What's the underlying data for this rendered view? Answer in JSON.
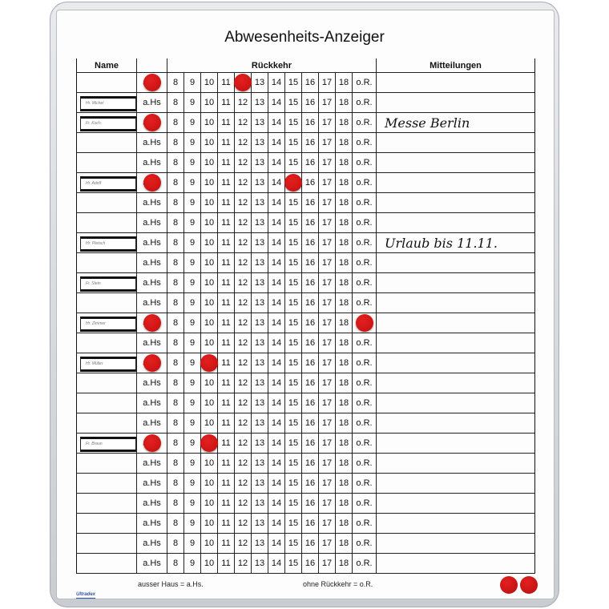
{
  "title": "Abwesenheits-Anzeiger",
  "headers": {
    "name": "Name",
    "return": "Rückkehr",
    "messages": "Mitteilungen"
  },
  "away_label": "a.Hs",
  "hours": [
    "8",
    "9",
    "10",
    "11",
    "12",
    "13",
    "14",
    "15",
    "16",
    "17",
    "18",
    "o.R."
  ],
  "rows": [
    {
      "name": "",
      "magnets": [
        "a.Hs",
        "12"
      ],
      "message": ""
    },
    {
      "name": "Hr. Michel",
      "magnets": [],
      "message": ""
    },
    {
      "name": "Fr. Koch",
      "magnets": [
        "a.Hs"
      ],
      "message": "Messe Berlin"
    },
    {
      "name": "",
      "magnets": [],
      "message": ""
    },
    {
      "name": "",
      "magnets": [],
      "message": ""
    },
    {
      "name": "Hr. Adolf",
      "magnets": [
        "a.Hs",
        "15"
      ],
      "message": ""
    },
    {
      "name": "",
      "magnets": [],
      "message": ""
    },
    {
      "name": "",
      "magnets": [],
      "message": ""
    },
    {
      "name": "Hr. Pletsch",
      "magnets": [],
      "message": "Urlaub bis 11.11."
    },
    {
      "name": "",
      "magnets": [],
      "message": ""
    },
    {
      "name": "Fr. Stein",
      "magnets": [],
      "message": ""
    },
    {
      "name": "",
      "magnets": [],
      "message": ""
    },
    {
      "name": "Hr. Zimmer",
      "magnets": [
        "a.Hs",
        "o.R."
      ],
      "message": ""
    },
    {
      "name": "",
      "magnets": [],
      "message": ""
    },
    {
      "name": "Hr. Müller",
      "magnets": [
        "a.Hs",
        "10"
      ],
      "message": ""
    },
    {
      "name": "",
      "magnets": [],
      "message": ""
    },
    {
      "name": "",
      "magnets": [],
      "message": ""
    },
    {
      "name": "",
      "magnets": [],
      "message": ""
    },
    {
      "name": "Fr. Braun",
      "magnets": [
        "a.Hs",
        "10"
      ],
      "message": ""
    },
    {
      "name": "",
      "magnets": [],
      "message": ""
    },
    {
      "name": "",
      "magnets": [],
      "message": ""
    },
    {
      "name": "",
      "magnets": [],
      "message": ""
    },
    {
      "name": "",
      "magnets": [],
      "message": ""
    },
    {
      "name": "",
      "magnets": [],
      "message": ""
    },
    {
      "name": "",
      "magnets": [],
      "message": ""
    }
  ],
  "legend": {
    "away": "ausser Haus = a.Hs.",
    "no_return": "ohne Rückkehr = o.R."
  },
  "brand": "Ultradex",
  "colors": {
    "magnet": "#d41616",
    "frame": "#c9cdd1"
  }
}
